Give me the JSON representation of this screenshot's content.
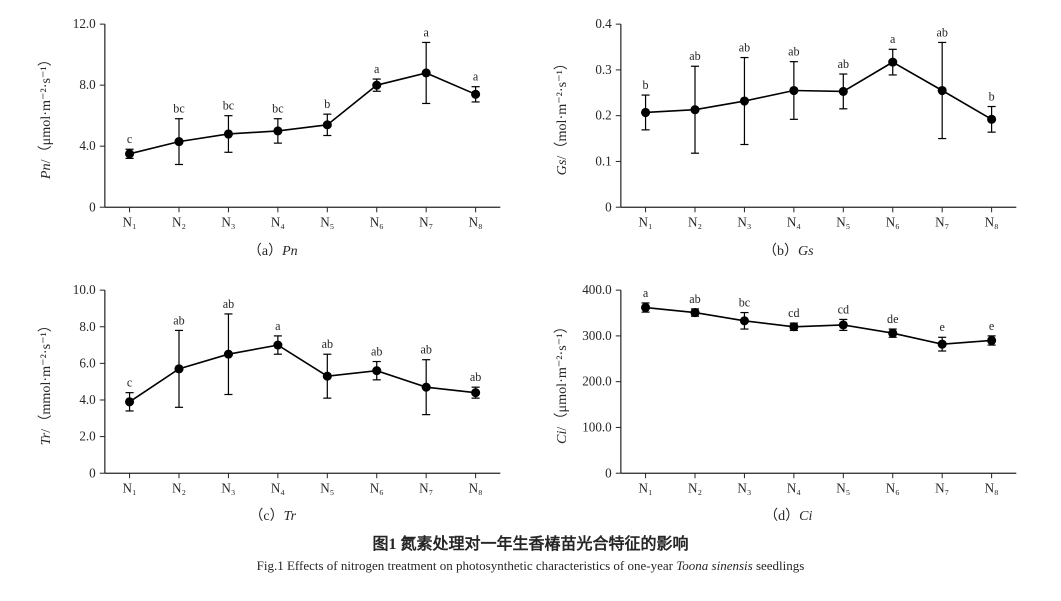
{
  "figure": {
    "caption_cn": "图1  氮素处理对一年生香椿苗光合特征的影响",
    "caption_en_prefix": "Fig.1  Effects of nitrogen treatment on photosynthetic characteristics of one-year ",
    "caption_en_italic": "Toona sinensis",
    "caption_en_suffix": " seedlings",
    "categories": [
      "N₁",
      "N₂",
      "N₃",
      "N₄",
      "N₅",
      "N₆",
      "N₇",
      "N₈"
    ],
    "global": {
      "background_color": "#ffffff",
      "axis_color": "#262626",
      "text_color": "#262626",
      "marker_color": "#000000",
      "line_color": "#000000",
      "line_width": 1.6,
      "marker_radius": 4.5,
      "errorbar_width": 1.2,
      "cap_halfwidth": 4,
      "tick_length": 5,
      "tick_fontsize": 13,
      "label_fontsize": 14,
      "annotation_fontsize": 12,
      "subcaption_fontsize": 14
    },
    "panels": [
      {
        "id": "a",
        "sub_caption_html": "（a）<i>Pn</i>",
        "ylabel_html": "<tspan font-style='italic'>Pn</tspan>/（μmol·m⁻²·s⁻¹）",
        "ylim": [
          0,
          12.0
        ],
        "yticks": [
          0,
          4.0,
          8.0,
          12.0
        ],
        "ytick_labels": [
          "0",
          "4.0",
          "8.0",
          "12.0"
        ],
        "y": [
          3.5,
          4.3,
          4.8,
          5.0,
          5.4,
          8.0,
          8.8,
          7.4
        ],
        "err": [
          0.3,
          1.5,
          1.2,
          0.8,
          0.7,
          0.4,
          2.0,
          0.5
        ],
        "letters": [
          "c",
          "bc",
          "bc",
          "bc",
          "b",
          "a",
          "a",
          "a"
        ]
      },
      {
        "id": "b",
        "sub_caption_html": "（b）<i>Gs</i>",
        "ylabel_html": "<tspan font-style='italic'>Gs</tspan>/（mol·m⁻²·s⁻¹）",
        "ylim": [
          0,
          0.4
        ],
        "yticks": [
          0,
          0.1,
          0.2,
          0.3,
          0.4
        ],
        "ytick_labels": [
          "0",
          "0.1",
          "0.2",
          "0.3",
          "0.4"
        ],
        "y": [
          0.207,
          0.213,
          0.232,
          0.255,
          0.253,
          0.317,
          0.255,
          0.192
        ],
        "err": [
          0.038,
          0.095,
          0.095,
          0.063,
          0.038,
          0.028,
          0.105,
          0.028
        ],
        "letters": [
          "b",
          "ab",
          "ab",
          "ab",
          "ab",
          "a",
          "ab",
          "b"
        ]
      },
      {
        "id": "c",
        "sub_caption_html": "（c）<i>Tr</i>",
        "ylabel_html": "<tspan font-style='italic'>Tr</tspan>/（mmol·m⁻²·s⁻¹）",
        "ylim": [
          0,
          10.0
        ],
        "yticks": [
          0,
          2.0,
          4.0,
          6.0,
          8.0,
          10.0
        ],
        "ytick_labels": [
          "0",
          "2.0",
          "4.0",
          "6.0",
          "8.0",
          "10.0"
        ],
        "y": [
          3.9,
          5.7,
          6.5,
          7.0,
          5.3,
          5.6,
          4.7,
          4.4
        ],
        "err": [
          0.5,
          2.1,
          2.2,
          0.5,
          1.2,
          0.5,
          1.5,
          0.3
        ],
        "letters": [
          "c",
          "ab",
          "ab",
          "a",
          "ab",
          "ab",
          "ab",
          "ab"
        ]
      },
      {
        "id": "d",
        "sub_caption_html": "（d）<i>Ci</i>",
        "ylabel_html": "<tspan font-style='italic'>Ci</tspan>/（μmol·m⁻²·s⁻¹）",
        "ylim": [
          0,
          400.0
        ],
        "yticks": [
          0,
          100.0,
          200.0,
          300.0,
          400.0
        ],
        "ytick_labels": [
          "0",
          "100.0",
          "200.0",
          "300.0",
          "400.0"
        ],
        "y": [
          362,
          351,
          333,
          320,
          324,
          306,
          282,
          290
        ],
        "err": [
          10,
          8,
          18,
          8,
          12,
          9,
          15,
          10
        ],
        "letters": [
          "a",
          "ab",
          "bc",
          "cd",
          "cd",
          "de",
          "e",
          "e"
        ]
      }
    ]
  }
}
